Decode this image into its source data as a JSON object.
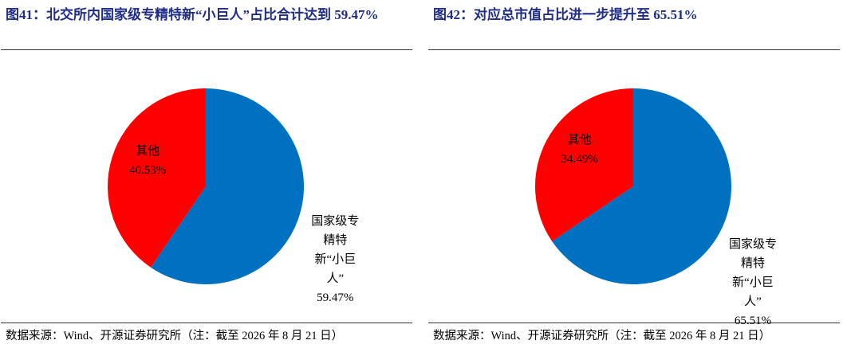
{
  "chart_data": [
    {
      "type": "pie",
      "title": "图41：北交所内国家级专精特新“小巨人”占比合计达到 59.47%",
      "categories": [
        "国家级专精特新“小巨人”",
        "其他"
      ],
      "values": [
        59.47,
        40.53
      ],
      "value_labels": [
        "59.47%",
        "40.53%"
      ],
      "colors": [
        "#0070c0",
        "#ff0000"
      ],
      "source": "数据来源：Wind、开源证券研究所（注：截至 2026 年 8 月 21 日）"
    },
    {
      "type": "pie",
      "title": "图42：对应总市值占比进一步提升至 65.51%",
      "categories": [
        "国家级专精特新“小巨人”",
        "其他"
      ],
      "values": [
        65.51,
        34.49
      ],
      "value_labels": [
        "65.51%",
        "34.49%"
      ],
      "colors": [
        "#0070c0",
        "#ff0000"
      ],
      "source": "数据来源：Wind、开源证券研究所（注：截至 2026 年 8 月 21 日）"
    }
  ]
}
